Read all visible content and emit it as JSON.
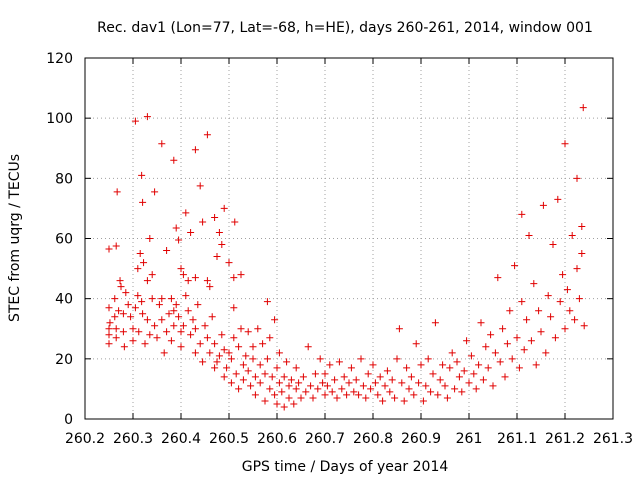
{
  "chart_data": {
    "type": "scatter",
    "title": "Rec. dav1 (Lon=77, Lat=-68, h=HE), days 260-261, 2014, window 001",
    "xlabel": "GPS time / Days of year 2014",
    "ylabel": "STEC from uqrg / TECUs",
    "xlim": [
      260.2,
      261.3
    ],
    "ylim": [
      0,
      120
    ],
    "xticks": [
      "260.2",
      "260.3",
      "260.4",
      "260.5",
      "260.6",
      "260.7",
      "260.8",
      "260.9",
      "261",
      "261.1",
      "261.2",
      "261.3"
    ],
    "yticks": [
      "0",
      "20",
      "40",
      "60",
      "80",
      "100",
      "120"
    ],
    "grid": true,
    "marker": "+",
    "color": "#e00000",
    "series": [
      {
        "name": "STEC",
        "points": [
          [
            260.25,
            56.5
          ],
          [
            260.265,
            57.5
          ],
          [
            260.267,
            75.5
          ],
          [
            260.305,
            99
          ],
          [
            260.318,
            81
          ],
          [
            260.32,
            72
          ],
          [
            260.33,
            100.5
          ],
          [
            260.335,
            60
          ],
          [
            260.345,
            75.5
          ],
          [
            260.36,
            91.5
          ],
          [
            260.37,
            56
          ],
          [
            260.385,
            86
          ],
          [
            260.39,
            63.5
          ],
          [
            260.395,
            59.5
          ],
          [
            260.41,
            68.5
          ],
          [
            260.42,
            62
          ],
          [
            260.43,
            89.5
          ],
          [
            260.44,
            77.5
          ],
          [
            260.445,
            65.5
          ],
          [
            260.455,
            94.5
          ],
          [
            260.47,
            67
          ],
          [
            260.48,
            62
          ],
          [
            260.49,
            70
          ],
          [
            260.512,
            65.5
          ],
          [
            260.51,
            47
          ],
          [
            260.525,
            48
          ],
          [
            260.36,
            40
          ],
          [
            260.34,
            48
          ],
          [
            260.33,
            46
          ],
          [
            260.322,
            52
          ],
          [
            260.315,
            55
          ],
          [
            260.31,
            50
          ],
          [
            260.38,
            40
          ],
          [
            260.4,
            50
          ],
          [
            260.405,
            48
          ],
          [
            260.415,
            46
          ],
          [
            260.43,
            47
          ],
          [
            260.455,
            46
          ],
          [
            260.46,
            44
          ],
          [
            260.475,
            54
          ],
          [
            260.485,
            58
          ],
          [
            260.5,
            52
          ],
          [
            260.25,
            37
          ],
          [
            260.25,
            30
          ],
          [
            260.25,
            28
          ],
          [
            260.25,
            25
          ],
          [
            260.252,
            32
          ],
          [
            260.262,
            40
          ],
          [
            260.262,
            34
          ],
          [
            260.265,
            30
          ],
          [
            260.265,
            27
          ],
          [
            260.27,
            36
          ],
          [
            260.273,
            46
          ],
          [
            260.275,
            44
          ],
          [
            260.28,
            35
          ],
          [
            260.28,
            29
          ],
          [
            260.282,
            24
          ],
          [
            260.285,
            42
          ],
          [
            260.29,
            38
          ],
          [
            260.295,
            34
          ],
          [
            260.3,
            26
          ],
          [
            260.3,
            30
          ],
          [
            260.305,
            37
          ],
          [
            260.31,
            41
          ],
          [
            260.312,
            29
          ],
          [
            260.318,
            39
          ],
          [
            260.32,
            35
          ],
          [
            260.325,
            25
          ],
          [
            260.33,
            33
          ],
          [
            260.335,
            28
          ],
          [
            260.34,
            40
          ],
          [
            260.345,
            31
          ],
          [
            260.35,
            27
          ],
          [
            260.355,
            38
          ],
          [
            260.36,
            33
          ],
          [
            260.365,
            22
          ],
          [
            260.37,
            29
          ],
          [
            260.375,
            35
          ],
          [
            260.38,
            26
          ],
          [
            260.385,
            31
          ],
          [
            260.385,
            36
          ],
          [
            260.39,
            38
          ],
          [
            260.395,
            34
          ],
          [
            260.4,
            24
          ],
          [
            260.4,
            29
          ],
          [
            260.405,
            31
          ],
          [
            260.41,
            41
          ],
          [
            260.415,
            36
          ],
          [
            260.42,
            28
          ],
          [
            260.425,
            33
          ],
          [
            260.43,
            30
          ],
          [
            260.43,
            22
          ],
          [
            260.435,
            38
          ],
          [
            260.44,
            25
          ],
          [
            260.445,
            19
          ],
          [
            260.45,
            31
          ],
          [
            260.455,
            27
          ],
          [
            260.46,
            22
          ],
          [
            260.465,
            34
          ],
          [
            260.47,
            17
          ],
          [
            260.47,
            25
          ],
          [
            260.475,
            19
          ],
          [
            260.48,
            21
          ],
          [
            260.485,
            28
          ],
          [
            260.49,
            14
          ],
          [
            260.49,
            23
          ],
          [
            260.495,
            17
          ],
          [
            260.5,
            22
          ],
          [
            260.505,
            12
          ],
          [
            260.505,
            20
          ],
          [
            260.51,
            37
          ],
          [
            260.51,
            27
          ],
          [
            260.515,
            15
          ],
          [
            260.52,
            10
          ],
          [
            260.52,
            24
          ],
          [
            260.525,
            30
          ],
          [
            260.53,
            18
          ],
          [
            260.53,
            13
          ],
          [
            260.535,
            21
          ],
          [
            260.54,
            29
          ],
          [
            260.54,
            16
          ],
          [
            260.545,
            11
          ],
          [
            260.55,
            24
          ],
          [
            260.55,
            20
          ],
          [
            260.555,
            8
          ],
          [
            260.555,
            14
          ],
          [
            260.56,
            30
          ],
          [
            260.565,
            18
          ],
          [
            260.565,
            12
          ],
          [
            260.57,
            25
          ],
          [
            260.575,
            6
          ],
          [
            260.575,
            15
          ],
          [
            260.58,
            39
          ],
          [
            260.58,
            20
          ],
          [
            260.585,
            10
          ],
          [
            260.585,
            27
          ],
          [
            260.59,
            14
          ],
          [
            260.595,
            8
          ],
          [
            260.595,
            33
          ],
          [
            260.6,
            17
          ],
          [
            260.6,
            5
          ],
          [
            260.605,
            22
          ],
          [
            260.605,
            12
          ],
          [
            260.61,
            9
          ],
          [
            260.615,
            4
          ],
          [
            260.615,
            14
          ],
          [
            260.62,
            19
          ],
          [
            260.625,
            11
          ],
          [
            260.625,
            7
          ],
          [
            260.63,
            13
          ],
          [
            260.635,
            5
          ],
          [
            260.64,
            10
          ],
          [
            260.64,
            17
          ],
          [
            260.645,
            12
          ],
          [
            260.65,
            7
          ],
          [
            260.655,
            14
          ],
          [
            260.66,
            9
          ],
          [
            260.665,
            24
          ],
          [
            260.67,
            11
          ],
          [
            260.675,
            7
          ],
          [
            260.68,
            15
          ],
          [
            260.685,
            10
          ],
          [
            260.69,
            20
          ],
          [
            260.695,
            12
          ],
          [
            260.7,
            8
          ],
          [
            260.7,
            15
          ],
          [
            260.705,
            11
          ],
          [
            260.71,
            18
          ],
          [
            260.715,
            9
          ],
          [
            260.72,
            13
          ],
          [
            260.725,
            7
          ],
          [
            260.73,
            19
          ],
          [
            260.735,
            10
          ],
          [
            260.74,
            14
          ],
          [
            260.745,
            8
          ],
          [
            260.75,
            12
          ],
          [
            260.755,
            17
          ],
          [
            260.76,
            9
          ],
          [
            260.765,
            13
          ],
          [
            260.77,
            8
          ],
          [
            260.775,
            20
          ],
          [
            260.78,
            11
          ],
          [
            260.785,
            7
          ],
          [
            260.79,
            15
          ],
          [
            260.795,
            10
          ],
          [
            260.8,
            18
          ],
          [
            260.805,
            12
          ],
          [
            260.81,
            8
          ],
          [
            260.815,
            14
          ],
          [
            260.82,
            6
          ],
          [
            260.825,
            11
          ],
          [
            260.83,
            16
          ],
          [
            260.835,
            9
          ],
          [
            260.84,
            13
          ],
          [
            260.845,
            7
          ],
          [
            260.85,
            20
          ],
          [
            260.855,
            30
          ],
          [
            260.86,
            12
          ],
          [
            260.865,
            6
          ],
          [
            260.87,
            17
          ],
          [
            260.875,
            10
          ],
          [
            260.88,
            14
          ],
          [
            260.885,
            8
          ],
          [
            260.89,
            25
          ],
          [
            260.895,
            12
          ],
          [
            260.9,
            18
          ],
          [
            260.905,
            6
          ],
          [
            260.91,
            11
          ],
          [
            260.915,
            20
          ],
          [
            260.92,
            9
          ],
          [
            260.925,
            15
          ],
          [
            260.93,
            32
          ],
          [
            260.935,
            8
          ],
          [
            260.94,
            13
          ],
          [
            260.945,
            18
          ],
          [
            260.95,
            11
          ],
          [
            260.955,
            7
          ],
          [
            260.96,
            17
          ],
          [
            260.965,
            22
          ],
          [
            260.97,
            10
          ],
          [
            260.975,
            19
          ],
          [
            260.98,
            14
          ],
          [
            260.985,
            9
          ],
          [
            260.99,
            16
          ],
          [
            260.995,
            26
          ],
          [
            261,
            12
          ],
          [
            261.005,
            21
          ],
          [
            261.01,
            15
          ],
          [
            261.015,
            10
          ],
          [
            261.02,
            18
          ],
          [
            261.025,
            32
          ],
          [
            261.03,
            13
          ],
          [
            261.035,
            24
          ],
          [
            261.04,
            17
          ],
          [
            261.045,
            28
          ],
          [
            261.05,
            11
          ],
          [
            261.055,
            22
          ],
          [
            261.06,
            47
          ],
          [
            261.065,
            19
          ],
          [
            261.07,
            30
          ],
          [
            261.075,
            14
          ],
          [
            261.08,
            25
          ],
          [
            261.085,
            36
          ],
          [
            261.09,
            20
          ],
          [
            261.095,
            51
          ],
          [
            261.1,
            27
          ],
          [
            261.105,
            17
          ],
          [
            261.11,
            39
          ],
          [
            261.11,
            68
          ],
          [
            261.115,
            23
          ],
          [
            261.12,
            33
          ],
          [
            261.125,
            61
          ],
          [
            261.13,
            26
          ],
          [
            261.135,
            45
          ],
          [
            261.14,
            18
          ],
          [
            261.145,
            36
          ],
          [
            261.15,
            29
          ],
          [
            261.155,
            71
          ],
          [
            261.16,
            22
          ],
          [
            261.165,
            41
          ],
          [
            261.17,
            34
          ],
          [
            261.175,
            58
          ],
          [
            261.18,
            27
          ],
          [
            261.185,
            73
          ],
          [
            261.19,
            39
          ],
          [
            261.195,
            48
          ],
          [
            261.2,
            91.5
          ],
          [
            261.2,
            30
          ],
          [
            261.205,
            43
          ],
          [
            261.21,
            36
          ],
          [
            261.215,
            61
          ],
          [
            261.22,
            33
          ],
          [
            261.225,
            80
          ],
          [
            261.225,
            50
          ],
          [
            261.23,
            40
          ],
          [
            261.235,
            64
          ],
          [
            261.235,
            55
          ],
          [
            261.238,
            103.5
          ],
          [
            261.24,
            31
          ]
        ]
      }
    ]
  }
}
